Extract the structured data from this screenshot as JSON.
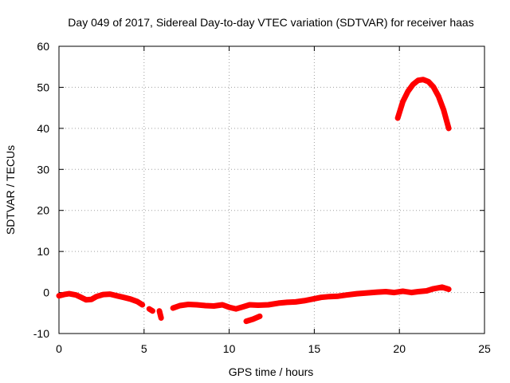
{
  "chart_data": {
    "type": "line",
    "title": "Day 049 of 2017, Sidereal Day-to-day VTEC variation (SDTVAR) for receiver haas",
    "xlabel": "GPS time / hours",
    "ylabel": "SDTVAR / TECUs",
    "xlim": [
      0,
      25
    ],
    "ylim": [
      -10,
      60
    ],
    "xticks": [
      0,
      5,
      10,
      15,
      20,
      25
    ],
    "yticks": [
      -10,
      0,
      10,
      20,
      30,
      40,
      50,
      60
    ],
    "grid": true,
    "series_color": "#ff0000",
    "segments": [
      {
        "name": "main-trace-1",
        "points": [
          [
            0,
            -0.8
          ],
          [
            0.3,
            -0.5
          ],
          [
            0.6,
            -0.3
          ],
          [
            1.0,
            -0.6
          ],
          [
            1.3,
            -1.2
          ],
          [
            1.6,
            -1.8
          ],
          [
            1.9,
            -1.7
          ],
          [
            2.2,
            -1.0
          ],
          [
            2.6,
            -0.5
          ],
          [
            3.0,
            -0.4
          ],
          [
            3.4,
            -0.8
          ],
          [
            3.8,
            -1.2
          ],
          [
            4.2,
            -1.6
          ],
          [
            4.6,
            -2.2
          ],
          [
            4.9,
            -3.0
          ]
        ]
      },
      {
        "name": "gap-blob-1",
        "points": [
          [
            5.3,
            -4.0
          ],
          [
            5.5,
            -4.5
          ]
        ]
      },
      {
        "name": "gap-blob-2",
        "points": [
          [
            5.9,
            -4.5
          ],
          [
            6.0,
            -6.2
          ]
        ]
      },
      {
        "name": "main-trace-2",
        "points": [
          [
            6.7,
            -3.8
          ],
          [
            7.1,
            -3.2
          ],
          [
            7.6,
            -2.9
          ],
          [
            8.1,
            -3.0
          ],
          [
            8.6,
            -3.2
          ],
          [
            9.1,
            -3.3
          ],
          [
            9.6,
            -3.0
          ],
          [
            10.0,
            -3.6
          ],
          [
            10.4,
            -4.0
          ],
          [
            10.8,
            -3.5
          ],
          [
            11.2,
            -3.0
          ],
          [
            11.7,
            -3.1
          ],
          [
            12.3,
            -3.0
          ],
          [
            12.9,
            -2.6
          ],
          [
            13.4,
            -2.4
          ],
          [
            13.9,
            -2.3
          ],
          [
            14.4,
            -2.0
          ],
          [
            14.9,
            -1.6
          ],
          [
            15.4,
            -1.2
          ],
          [
            15.9,
            -1.0
          ],
          [
            16.4,
            -0.9
          ],
          [
            16.9,
            -0.6
          ],
          [
            17.5,
            -0.3
          ],
          [
            18.1,
            -0.1
          ],
          [
            18.7,
            0.1
          ],
          [
            19.2,
            0.2
          ],
          [
            19.7,
            0.0
          ],
          [
            20.2,
            0.3
          ],
          [
            20.7,
            0.0
          ],
          [
            21.1,
            0.2
          ],
          [
            21.6,
            0.4
          ],
          [
            22.0,
            0.9
          ],
          [
            22.5,
            1.3
          ],
          [
            22.9,
            0.8
          ]
        ]
      },
      {
        "name": "dip-segment",
        "points": [
          [
            11.0,
            -7.0
          ],
          [
            11.4,
            -6.5
          ],
          [
            11.8,
            -5.8
          ]
        ]
      },
      {
        "name": "arc-segment",
        "points": [
          [
            19.9,
            42.5
          ],
          [
            20.2,
            46.5
          ],
          [
            20.5,
            49.0
          ],
          [
            20.8,
            50.7
          ],
          [
            21.1,
            51.7
          ],
          [
            21.4,
            51.9
          ],
          [
            21.7,
            51.4
          ],
          [
            22.0,
            50.1
          ],
          [
            22.3,
            47.8
          ],
          [
            22.6,
            44.5
          ],
          [
            22.9,
            40.0
          ]
        ]
      }
    ]
  }
}
